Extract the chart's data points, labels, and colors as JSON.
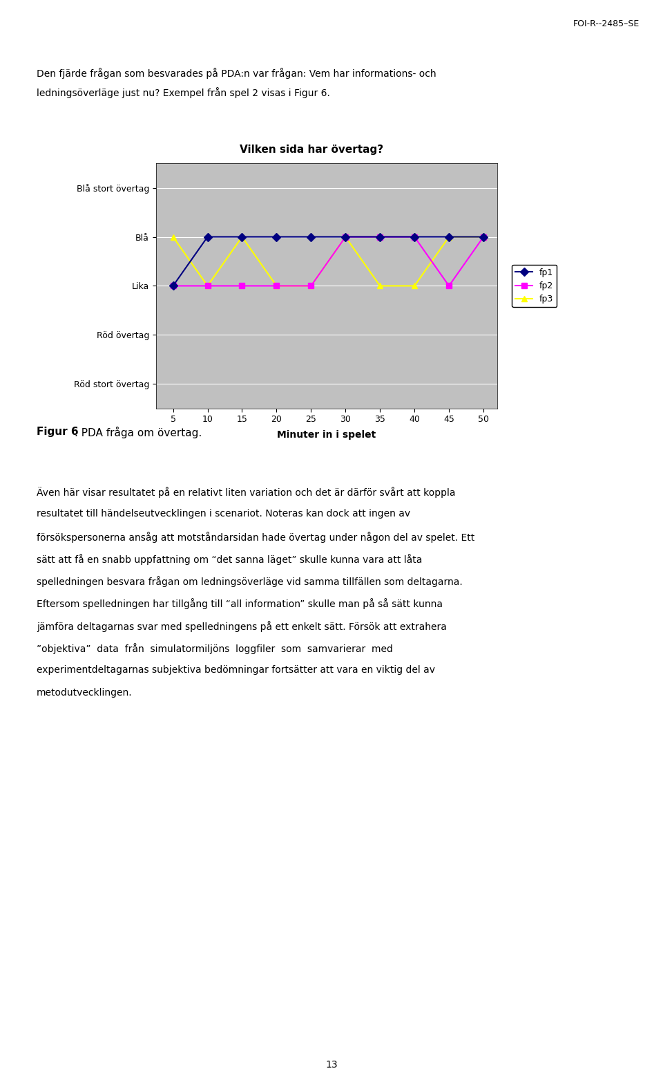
{
  "title": "Vilken sida har övertag?",
  "xlabel": "Minuter in i spelet",
  "ytick_labels": [
    "Röd stort övertag",
    "Röd övertag",
    "Lika",
    "Blå",
    "Blå stort övertag"
  ],
  "ytick_values": [
    0,
    1,
    2,
    3,
    4
  ],
  "xtick_values": [
    5,
    10,
    15,
    20,
    25,
    30,
    35,
    40,
    45,
    50
  ],
  "fp1": {
    "x": [
      5,
      10,
      15,
      20,
      25,
      30,
      35,
      40,
      45,
      50
    ],
    "y": [
      2,
      3,
      3,
      3,
      3,
      3,
      3,
      3,
      3,
      3
    ],
    "color": "#000080",
    "marker": "D",
    "label": "fp1"
  },
  "fp2": {
    "x": [
      5,
      10,
      15,
      20,
      25,
      30,
      35,
      40,
      45,
      50
    ],
    "y": [
      2,
      2,
      2,
      2,
      2,
      3,
      3,
      3,
      2,
      3
    ],
    "color": "#FF00FF",
    "marker": "s",
    "label": "fp2"
  },
  "fp3": {
    "x": [
      5,
      10,
      15,
      20,
      25,
      30,
      35,
      40,
      45,
      50
    ],
    "y": [
      3,
      2,
      3,
      2,
      2,
      3,
      2,
      2,
      3,
      3
    ],
    "color": "#FFFF00",
    "marker": "^",
    "label": "fp3"
  },
  "plot_bg": "#C0C0C0",
  "fig_bg": "#FFFFFF",
  "header_text": "FOI-R--2485–SE",
  "para1_line1": "Den fjärde frågan som besvarades på PDA:n var frågan: Vem har informations- och",
  "para1_line2": "ledningsöverläge just nu? Exempel från spel 2 visas i Figur 6.",
  "figcaption_bold": "Figur 6",
  "figcaption_rest": ". PDA fråga om övertag.",
  "body_lines": [
    "Även här visar resultatet på en relativt liten variation och det är därför svårt att koppla",
    "resultatet till händelseutvecklingen i scenariot. Noteras kan dock att ingen av",
    "försökspersonerna ansåg att motståndarsidan hade övertag under någon del av spelet. Ett",
    "sätt att få en snabb uppfattning om “det sanna läget” skulle kunna vara att låta",
    "spelledningen besvara frågan om ledningsöverläge vid samma tillfällen som deltagarna.",
    "Eftersom spelledningen har tillgång till “all information” skulle man på så sätt kunna",
    "jämföra deltagarnas svar med spelledningens på ett enkelt sätt. Försök att extrahera",
    "”objektiva”  data  från  simulatormiljöns  loggfiler  som  samvarierar  med",
    "experimentdeltagarnas subjektiva bedömningar fortsätter att vara en viktig del av",
    "metodutvecklingen."
  ],
  "page_number": "13",
  "title_fontsize": 11,
  "axis_fontsize": 9,
  "legend_fontsize": 9,
  "body_fontsize": 10,
  "header_fontsize": 9
}
